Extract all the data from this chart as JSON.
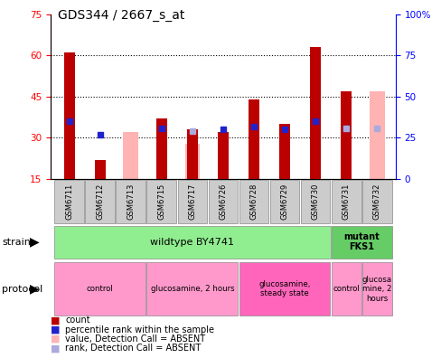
{
  "title": "GDS344 / 2667_s_at",
  "samples": [
    "GSM6711",
    "GSM6712",
    "GSM6713",
    "GSM6715",
    "GSM6717",
    "GSM6726",
    "GSM6728",
    "GSM6729",
    "GSM6730",
    "GSM6731",
    "GSM6732"
  ],
  "count_values": [
    61,
    22,
    null,
    37,
    33,
    32,
    44,
    35,
    63,
    47,
    null
  ],
  "absent_count_values": [
    null,
    null,
    32,
    null,
    28,
    null,
    null,
    null,
    null,
    null,
    47
  ],
  "blue_solid_values": [
    35,
    27,
    null,
    31,
    null,
    30,
    32,
    30,
    35,
    31,
    null
  ],
  "absent_blue_values": [
    null,
    null,
    null,
    null,
    29,
    null,
    null,
    null,
    null,
    31,
    31
  ],
  "ylim_left": [
    15,
    75
  ],
  "ylim_right": [
    0,
    100
  ],
  "left_yticks": [
    15,
    30,
    45,
    60,
    75
  ],
  "right_ytick_vals": [
    0,
    25,
    50,
    75,
    100
  ],
  "right_ytick_labels": [
    "0",
    "25",
    "50",
    "75",
    "100%"
  ],
  "hgrid_lines": [
    30,
    45,
    60
  ],
  "bar_color_red": "#BB0000",
  "bar_color_pink": "#FFB3B3",
  "blue_color": "#2222CC",
  "absent_blue_color": "#AAAADD",
  "bar_width": 0.35,
  "strain_wildtype_label": "wildtype BY4741",
  "strain_mutant_label": "mutant\nFKS1",
  "strain_color": "#90EE90",
  "strain_mutant_color": "#66CC66",
  "proto_groups": [
    {
      "label": "control",
      "start": 0,
      "end": 3,
      "color": "#FF99CC"
    },
    {
      "label": "glucosamine, 2 hours",
      "start": 3,
      "end": 6,
      "color": "#FF99CC"
    },
    {
      "label": "glucosamine,\nsteady state",
      "start": 6,
      "end": 9,
      "color": "#FF66BB"
    },
    {
      "label": "control",
      "start": 9,
      "end": 10,
      "color": "#FF99CC"
    },
    {
      "label": "glucosa\nmine, 2\nhours",
      "start": 10,
      "end": 11,
      "color": "#FF99CC"
    }
  ],
  "legend_items": [
    {
      "color": "#BB0000",
      "label": "count"
    },
    {
      "color": "#2222CC",
      "label": "percentile rank within the sample"
    },
    {
      "color": "#FFB3B3",
      "label": "value, Detection Call = ABSENT"
    },
    {
      "color": "#AAAADD",
      "label": "rank, Detection Call = ABSENT"
    }
  ]
}
